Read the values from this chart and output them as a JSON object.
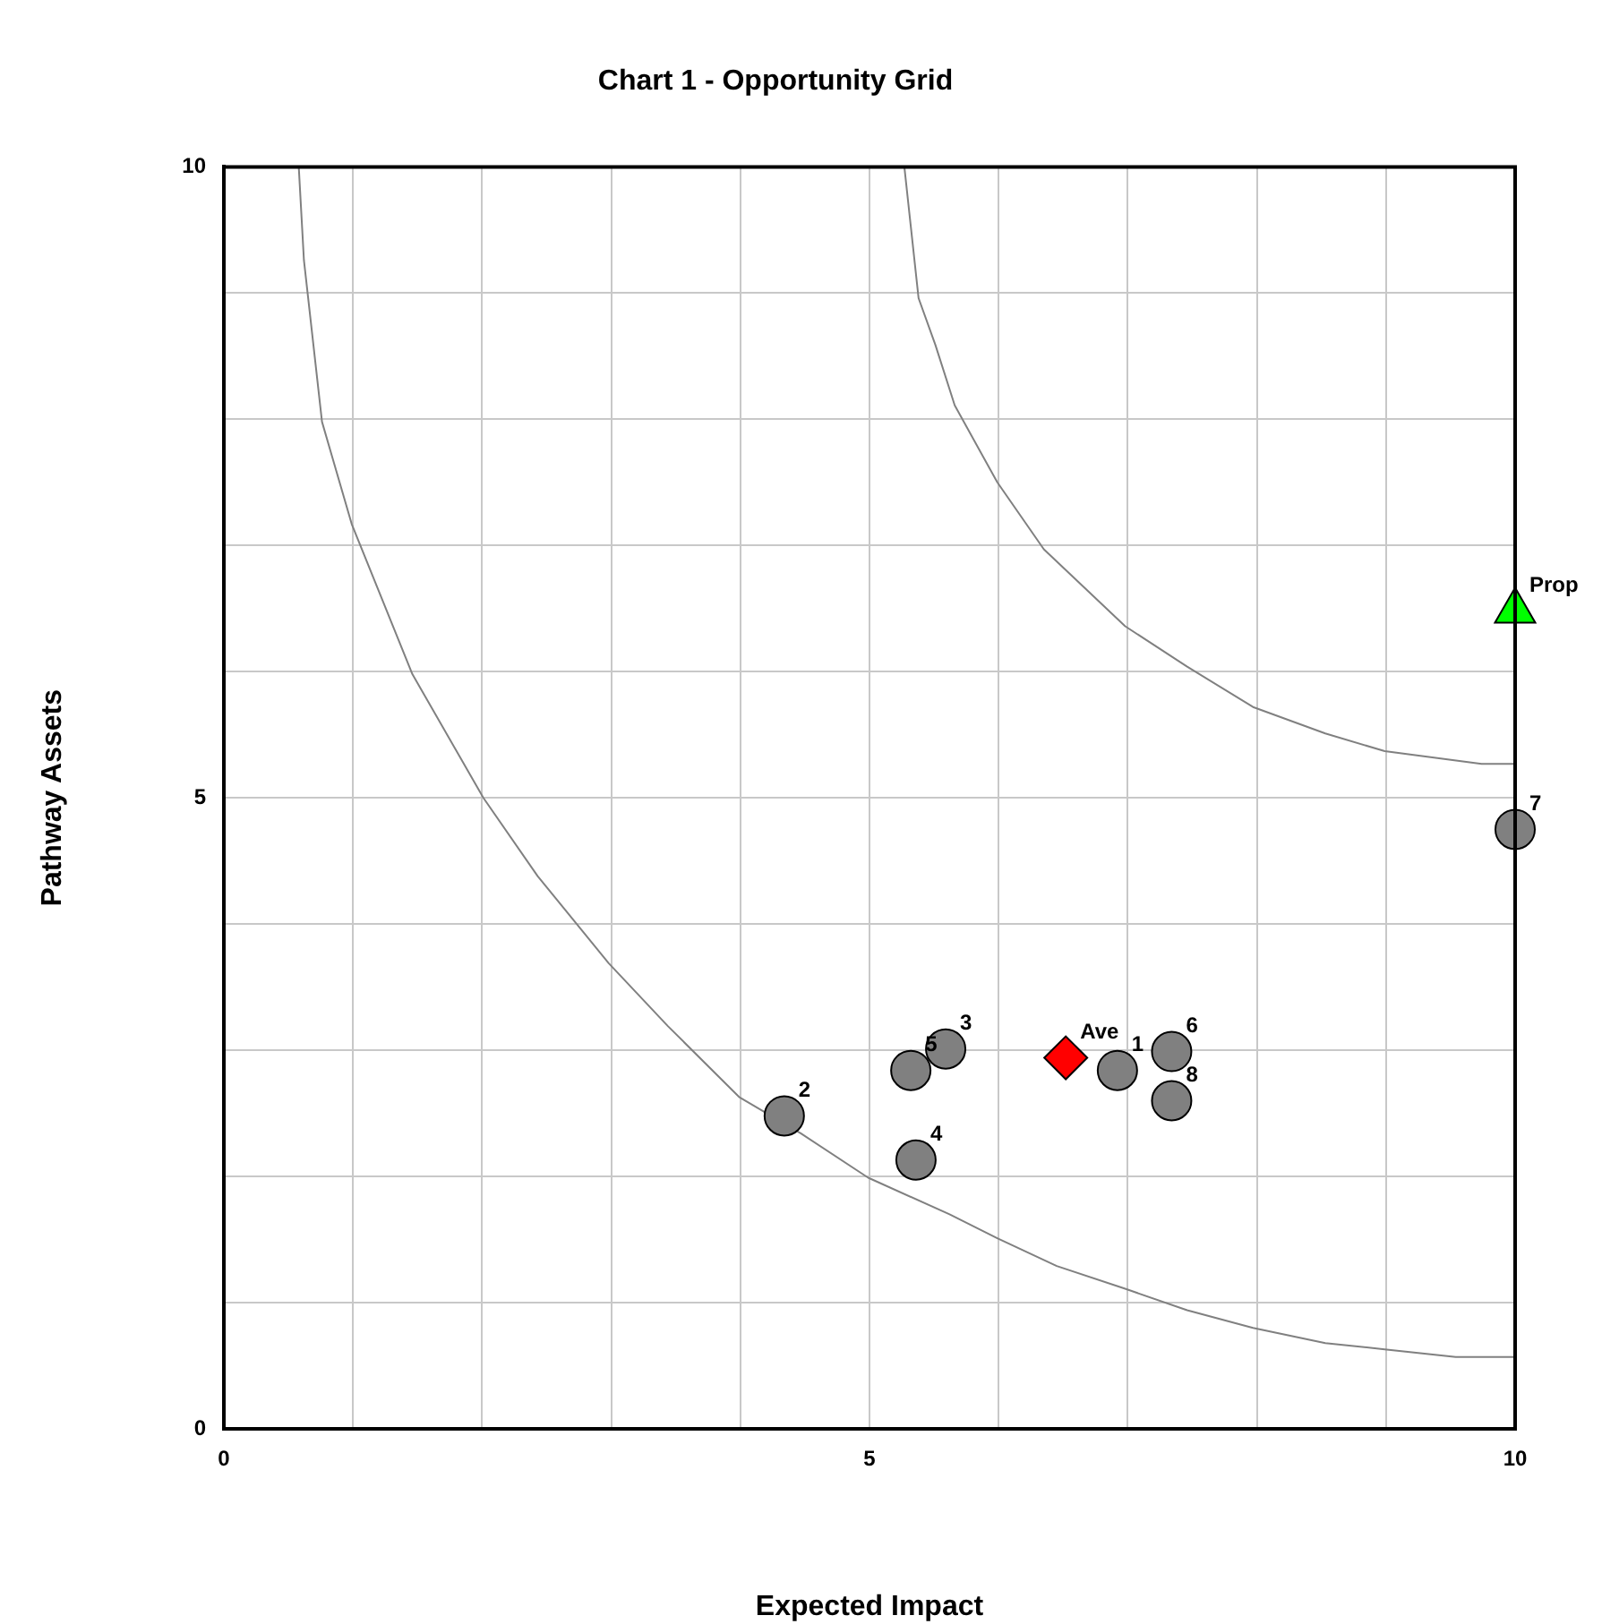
{
  "chart_data": {
    "type": "scatter",
    "title": "Chart 1 - Opportunity Grid",
    "xlabel": "Expected Impact",
    "ylabel": "Pathway Assets",
    "xlim": [
      0,
      10
    ],
    "ylim": [
      0,
      10
    ],
    "xticks": [
      0,
      {
        "value": 1,
        "label": null
      },
      {
        "value": 2,
        "label": null
      },
      {
        "value": 3,
        "label": null
      },
      {
        "value": 4,
        "label": null
      },
      5,
      {
        "value": 6,
        "label": null
      },
      {
        "value": 7,
        "label": null
      },
      {
        "value": 8,
        "label": null
      },
      {
        "value": 9,
        "label": null
      },
      10
    ],
    "yticks": [
      0,
      {
        "value": 1,
        "label": null
      },
      {
        "value": 2,
        "label": null
      },
      {
        "value": 3,
        "label": null
      },
      {
        "value": 4,
        "label": null
      },
      5,
      {
        "value": 6,
        "label": null
      },
      {
        "value": 7,
        "label": null
      },
      {
        "value": 8,
        "label": null
      },
      {
        "value": 9,
        "label": null
      },
      10
    ],
    "grid": true,
    "legend": false,
    "series": [
      {
        "type": "line",
        "color": "#808080",
        "marker": "none",
        "x": [
          0.58,
          0.62,
          0.76,
          0.99,
          1.46,
          2.01,
          2.43,
          2.98,
          3.44,
          3.99,
          4.47,
          4.99,
          5.62,
          5.99,
          6.45,
          6.98,
          7.46,
          7.97,
          8.53,
          8.99,
          9.54,
          10
        ],
        "values": [
          10,
          9.26,
          7.98,
          7.17,
          5.98,
          5.0,
          4.38,
          3.69,
          3.19,
          2.63,
          2.34,
          1.99,
          1.7,
          1.51,
          1.29,
          1.11,
          0.94,
          0.8,
          0.68,
          0.63,
          0.57,
          0.57
        ]
      },
      {
        "type": "line",
        "color": "#808080",
        "marker": "none",
        "x": [
          5.27,
          5.38,
          5.51,
          5.66,
          5.99,
          6.35,
          6.98,
          7.46,
          7.97,
          8.53,
          8.99,
          9.74,
          10
        ],
        "values": [
          10,
          8.96,
          8.59,
          8.11,
          7.5,
          6.97,
          6.36,
          6.04,
          5.72,
          5.51,
          5.37,
          5.27,
          5.27
        ]
      },
      {
        "name": "Ave",
        "type": "scatter",
        "marker": "diamond",
        "color": "#ff0000",
        "x": [
          6.52
        ],
        "values": [
          2.94
        ]
      },
      {
        "name": "1",
        "type": "scatter",
        "marker": "circle",
        "color": "#808080",
        "x": [
          6.92
        ],
        "values": [
          2.84
        ]
      },
      {
        "name": "2",
        "type": "scatter",
        "marker": "circle",
        "color": "#808080",
        "x": [
          4.34
        ],
        "values": [
          2.48
        ]
      },
      {
        "name": "3",
        "type": "scatter",
        "marker": "circle",
        "color": "#808080",
        "x": [
          5.59
        ],
        "values": [
          3.01
        ]
      },
      {
        "name": "4",
        "type": "scatter",
        "marker": "circle",
        "color": "#808080",
        "x": [
          5.36
        ],
        "values": [
          2.13
        ]
      },
      {
        "name": "5",
        "type": "scatter",
        "marker": "circle",
        "color": "#808080",
        "x": [
          5.32
        ],
        "values": [
          2.84
        ]
      },
      {
        "name": "6",
        "type": "scatter",
        "marker": "circle",
        "color": "#808080",
        "x": [
          7.34
        ],
        "values": [
          2.99
        ]
      },
      {
        "name": "7",
        "type": "scatter",
        "marker": "circle",
        "color": "#808080",
        "x": [
          10
        ],
        "values": [
          4.75
        ]
      },
      {
        "name": "8",
        "type": "scatter",
        "marker": "circle",
        "color": "#808080",
        "x": [
          7.34
        ],
        "values": [
          2.6
        ]
      },
      {
        "name": "Prop",
        "type": "scatter",
        "marker": "triangle",
        "color": "#00ff00",
        "x": [
          10
        ],
        "values": [
          6.48
        ]
      }
    ]
  }
}
